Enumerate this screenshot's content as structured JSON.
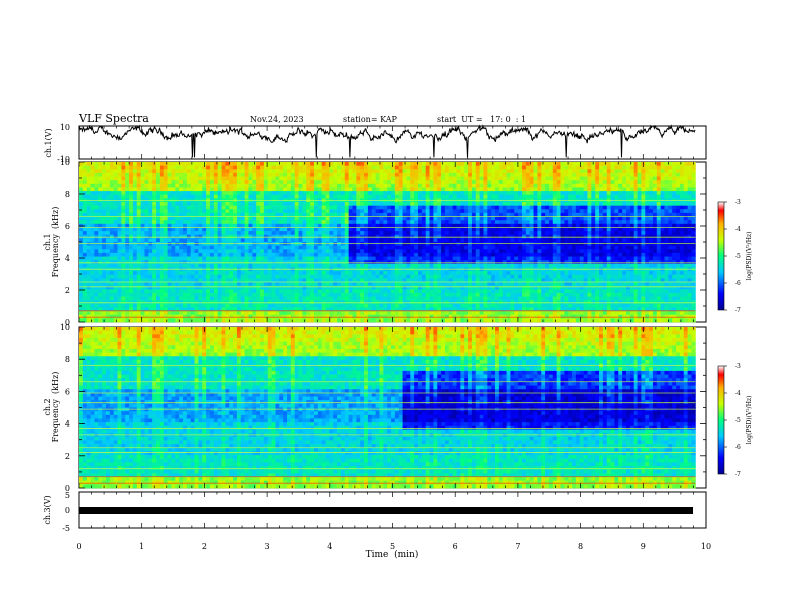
{
  "header": {
    "title": "VLF Spectra",
    "date": "Nov.24, 2023",
    "station": "station= KAP",
    "start": "start  UT =   17: 0  : 1"
  },
  "chart_data": [
    {
      "type": "line",
      "panel": "ch1-waveform",
      "ylabel": "ch.1(V)",
      "ylim": [
        -10,
        10
      ],
      "yticks": [
        "10",
        "-10"
      ],
      "xlim": [
        0,
        10
      ],
      "series_description": "noisy waveform oscillating mostly between 0 and 10 V"
    },
    {
      "type": "heatmap",
      "panel": "ch1-spectrogram",
      "ylabel": "ch.1",
      "ylabel2": "Frequency  (kHz)",
      "ylim": [
        0,
        10
      ],
      "yticks": [
        "0",
        "2",
        "4",
        "6",
        "8",
        "10"
      ],
      "xlim": [
        0,
        9.83
      ],
      "colorbar": {
        "label": "log(PSD)(V²/Hz)",
        "range": [
          -7,
          -3
        ],
        "ticks": [
          "-3",
          "-4",
          "-5",
          "-6",
          "-7"
        ]
      }
    },
    {
      "type": "heatmap",
      "panel": "ch2-spectrogram",
      "ylabel": "ch.2",
      "ylabel2": "Frequency  (kHz)",
      "ylim": [
        0,
        10
      ],
      "yticks": [
        "0",
        "2",
        "4",
        "6",
        "8",
        "10"
      ],
      "xlim": [
        0,
        9.83
      ],
      "colorbar": {
        "label": "log(PSD)(V²/Hz)",
        "range": [
          -7,
          -3
        ],
        "ticks": [
          "-3",
          "-4",
          "-5",
          "-6",
          "-7"
        ]
      }
    },
    {
      "type": "line",
      "panel": "ch3-waveform",
      "ylabel": "ch.3(V)",
      "ylim": [
        -5,
        5
      ],
      "yticks": [
        "5",
        "0",
        "-5"
      ],
      "xlim": [
        0,
        10
      ],
      "series_description": "flat thick band near -1 V"
    }
  ],
  "xaxis": {
    "label": "Time  (min)",
    "ticks": [
      "0",
      "1",
      "2",
      "3",
      "4",
      "5",
      "6",
      "7",
      "8",
      "9",
      "10"
    ]
  }
}
